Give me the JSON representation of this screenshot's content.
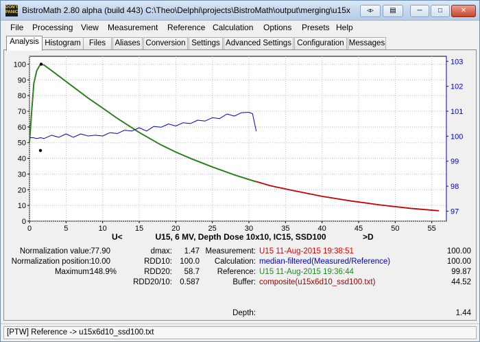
{
  "window": {
    "title": "BistroMath 2.80 alpha (build 443)   C:\\Theo\\Delphi\\projects\\BistroMath\\output\\merging\\u15x",
    "icon_text": "DON'T PANIC"
  },
  "menu": [
    "File",
    "Processing",
    "View",
    "Measurement",
    "Reference",
    "Calculation",
    "Options",
    "Presets",
    "Help"
  ],
  "tabs": [
    "Analysis",
    "Histogram",
    "Files",
    "Aliases",
    "Conversion",
    "Settings",
    "Advanced Settings",
    "Configuration",
    "Messages"
  ],
  "active_tab": "Analysis",
  "chart_data": {
    "type": "line",
    "title": "U15, 6 MV, Depth Dose 10x10, IC15, SSD100",
    "left_nav": "U<",
    "right_nav": ">D",
    "xlim": [
      0,
      57
    ],
    "ylim_left": [
      0,
      105
    ],
    "ylim_right": [
      96.6,
      103.2
    ],
    "x_ticks": [
      0,
      5,
      10,
      15,
      20,
      25,
      30,
      35,
      40,
      45,
      50,
      55
    ],
    "y_ticks_left": [
      0,
      10,
      20,
      30,
      40,
      50,
      60,
      70,
      80,
      90,
      100
    ],
    "y_ticks_right": [
      97,
      98,
      99,
      100,
      101,
      102,
      103
    ],
    "colors": {
      "reference": "#e00000",
      "measured": "#1e8a1e",
      "ratio": "#0000cc",
      "marker": "#000000"
    },
    "series": [
      {
        "axis": "left",
        "color": "#c80000",
        "x": [
          0,
          0.3,
          0.6,
          1.0,
          1.5,
          2,
          3,
          4,
          5,
          6,
          8,
          10,
          12,
          15,
          18,
          20,
          22,
          25,
          28,
          30,
          33,
          36,
          40,
          44,
          48,
          52,
          56
        ],
        "y": [
          50,
          70,
          88,
          96,
          100,
          99.4,
          96,
          92.5,
          89,
          85.5,
          78.5,
          72,
          65.5,
          56.5,
          48.5,
          44,
          40,
          34.5,
          29.5,
          26.5,
          22.5,
          19.5,
          15.8,
          12.8,
          10.3,
          8.2,
          6.6
        ]
      },
      {
        "axis": "left",
        "color": "#1e8a1e",
        "x": [
          0,
          0.3,
          0.6,
          1.0,
          1.5,
          2,
          3,
          4,
          5,
          6,
          8,
          10,
          12,
          15,
          18,
          20,
          22,
          25,
          28,
          30,
          31
        ],
        "y": [
          50,
          70,
          88,
          96,
          100,
          99.4,
          96,
          92.5,
          89,
          85.5,
          78.5,
          72,
          65.5,
          56.5,
          48.5,
          44,
          40,
          34.5,
          29.5,
          26.5,
          25
        ]
      },
      {
        "axis": "right",
        "color": "#0000cc",
        "x": [
          0,
          0.5,
          1,
          1.5,
          2,
          3,
          4,
          5,
          6,
          7,
          8,
          9,
          10,
          11,
          12,
          13,
          14,
          15,
          16,
          17,
          18,
          19,
          20,
          21,
          22,
          23,
          24,
          25,
          26,
          27,
          28,
          29,
          30,
          30.5,
          31
        ],
        "y": [
          99.95,
          99.9,
          99.95,
          99.9,
          99.95,
          100.0,
          100.0,
          100.05,
          100.0,
          100.05,
          100.05,
          100.0,
          100.05,
          100.1,
          100.15,
          100.2,
          100.25,
          100.3,
          100.25,
          100.35,
          100.4,
          100.45,
          100.45,
          100.5,
          100.55,
          100.6,
          100.65,
          100.7,
          100.75,
          100.85,
          100.85,
          100.9,
          101.0,
          100.9,
          100.2
        ]
      }
    ],
    "markers": [
      {
        "x": 1.6,
        "y": 100,
        "axis": "left"
      },
      {
        "x": 1.5,
        "y": 45,
        "axis": "left"
      }
    ]
  },
  "stats": {
    "normalization_value_label": "Normalization value:",
    "normalization_value": "77.90",
    "normalization_position_label": "Normalization position:",
    "normalization_position": "10.00",
    "maximum_label": "Maximum:",
    "maximum": "148.9%",
    "dmax_label": "dmax:",
    "dmax": "1.47",
    "rdd10_label": "RDD10:",
    "rdd10": "100.0",
    "rdd20_label": "RDD20:",
    "rdd20": "58.7",
    "rdd2010_label": "RDD20/10:",
    "rdd2010": "0.587"
  },
  "sources": {
    "measurement_label": "Measurement:",
    "measurement": "U15 11-Aug-2015 19:38:51",
    "measurement_value": "100.00",
    "measurement_color": "#e00000",
    "calculation_label": "Calculation:",
    "calculation": "median-filtered(Measured/Reference)",
    "calculation_value": "100.00",
    "calculation_color": "#0000cc",
    "reference_label": "Reference:",
    "reference": "U15 11-Aug-2015 19:36:44",
    "reference_value": "99.87",
    "reference_color": "#1e8a1e",
    "buffer_label": "Buffer:",
    "buffer": "composite(u15x6d10_ssd100.txt)",
    "buffer_value": "44.52",
    "buffer_color": "#a00000"
  },
  "depth": {
    "label": "Depth:",
    "value": "1.44"
  },
  "status": "[PTW] Reference -> u15x6d10_ssd100.txt"
}
